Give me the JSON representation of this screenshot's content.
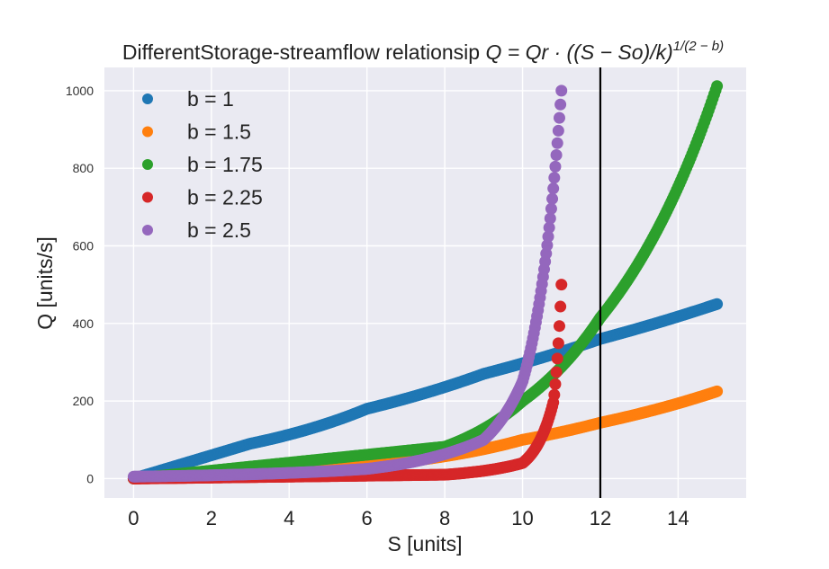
{
  "chart_data": {
    "type": "scatter",
    "title": "DifferentStorage-streamflow relationsip",
    "title_formula": "Q = Qr · ((S − So)/k)",
    "title_exponent": "1/(2 − b)",
    "xlabel": "S [units]",
    "ylabel": "Q [units/s]",
    "xlim": [
      -0.75,
      15.75
    ],
    "ylim": [
      -50,
      1060
    ],
    "xticks": [
      "0",
      "2",
      "4",
      "6",
      "8",
      "10",
      "12",
      "14"
    ],
    "yticks": [
      "0",
      "200",
      "400",
      "600",
      "800",
      "1000"
    ],
    "grid": true,
    "legend_position": "top-left",
    "vline": {
      "x": 12,
      "color": "#000000"
    },
    "series": [
      {
        "name": "b = 1",
        "b": 1,
        "color": "#1f77b4",
        "s_max": 15,
        "points": [
          [
            0,
            0
          ],
          [
            3,
            90
          ],
          [
            6,
            180
          ],
          [
            9,
            270
          ],
          [
            12,
            360
          ],
          [
            15,
            450
          ]
        ]
      },
      {
        "name": "b = 1.5",
        "b": 1.5,
        "color": "#ff7f0e",
        "s_max": 15,
        "points": [
          [
            0,
            0
          ],
          [
            5,
            25
          ],
          [
            10,
            100
          ],
          [
            12,
            144
          ],
          [
            15,
            225
          ]
        ]
      },
      {
        "name": "b = 1.75",
        "b": 1.75,
        "color": "#2ca02c",
        "s_max": 15,
        "points": [
          [
            0,
            0
          ],
          [
            8,
            82
          ],
          [
            10,
            200
          ],
          [
            12,
            415
          ],
          [
            15,
            1012
          ]
        ]
      },
      {
        "name": "b = 2.25",
        "b": 2.25,
        "color": "#d62728",
        "s_max": 11,
        "points": [
          [
            0,
            0
          ],
          [
            8,
            10
          ],
          [
            10,
            40
          ],
          [
            10.8,
            200
          ],
          [
            11,
            500
          ]
        ]
      },
      {
        "name": "b = 2.5",
        "b": 2.5,
        "color": "#9467bd",
        "s_max": 11,
        "points": [
          [
            0,
            5
          ],
          [
            6,
            25
          ],
          [
            9,
            100
          ],
          [
            10,
            250
          ],
          [
            11,
            1000
          ]
        ]
      }
    ]
  }
}
